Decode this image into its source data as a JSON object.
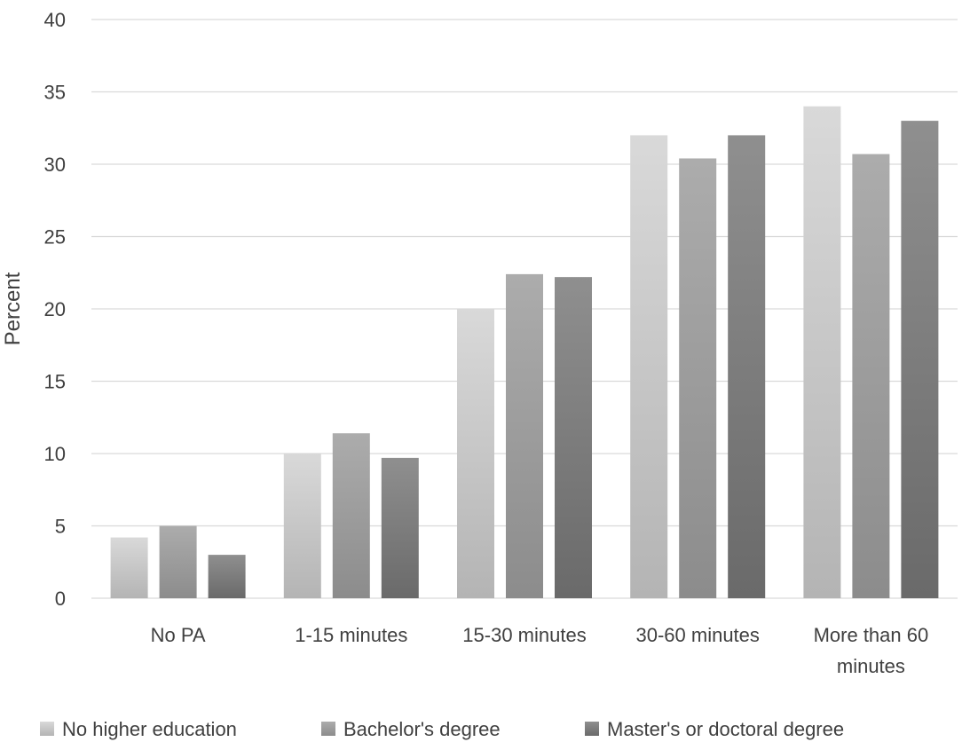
{
  "chart_data": {
    "type": "bar",
    "title": "",
    "xlabel": "",
    "ylabel": "Percent",
    "ylim": [
      0,
      40
    ],
    "yticks": [
      0,
      5,
      10,
      15,
      20,
      25,
      30,
      35,
      40
    ],
    "grid": true,
    "legend_position": "bottom",
    "categories": [
      [
        "No PA"
      ],
      [
        "1-15 minutes"
      ],
      [
        "15-30 minutes"
      ],
      [
        "30-60 minutes"
      ],
      [
        "More than 60",
        "minutes"
      ]
    ],
    "series": [
      {
        "name": "No higher education",
        "color_top": "#d9d9d9",
        "color_bottom": "#b4b4b4",
        "values": [
          4.2,
          10.0,
          20.0,
          32.0,
          34.0
        ]
      },
      {
        "name": "Bachelor's degree",
        "color_top": "#acacac",
        "color_bottom": "#8c8c8c",
        "values": [
          5.0,
          11.4,
          22.4,
          30.4,
          30.7
        ]
      },
      {
        "name": "Master's or doctoral degree",
        "color_top": "#8f8f8f",
        "color_bottom": "#6a6a6a",
        "values": [
          3.0,
          9.7,
          22.2,
          32.0,
          33.0
        ]
      }
    ]
  }
}
